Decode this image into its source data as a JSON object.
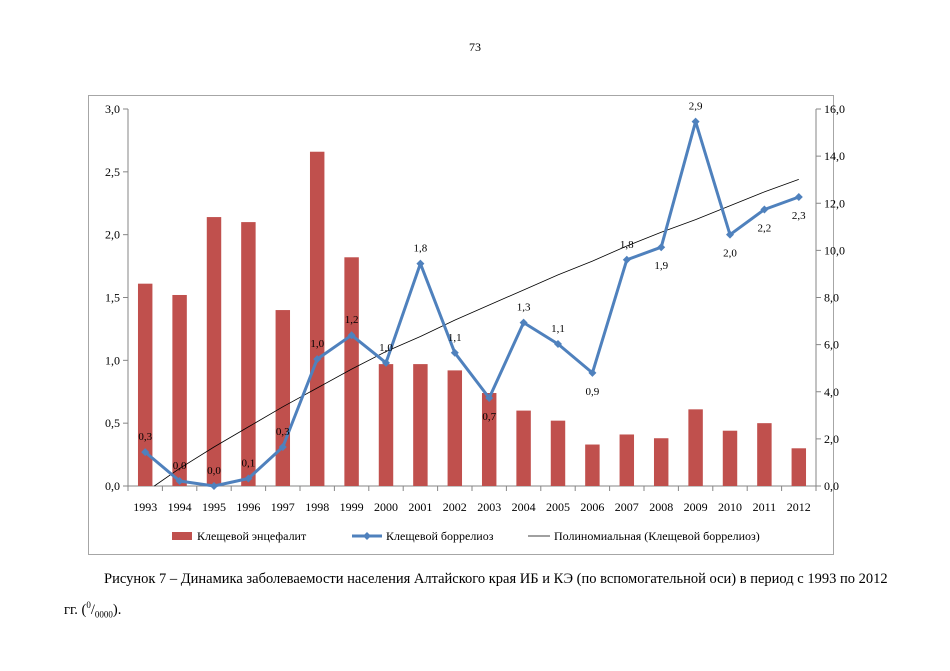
{
  "page_number": "73",
  "caption": {
    "text": "Рисунок 7 – Динамика заболеваемости населения Алтайского края ИБ и КЭ (по вспомогательной оси) в период с 1993 по 2012 гг. (",
    "unit_sup": "0",
    "unit_sep": "/",
    "unit_sub": "0000",
    "tail": ")."
  },
  "chart_data": {
    "type": "bar",
    "categories": [
      "1993",
      "1994",
      "1995",
      "1996",
      "1997",
      "1998",
      "1999",
      "2000",
      "2001",
      "2002",
      "2003",
      "2004",
      "2005",
      "2006",
      "2007",
      "2008",
      "2009",
      "2010",
      "2011",
      "2012"
    ],
    "y_left": {
      "min": 0,
      "max": 3.0,
      "ticks": [
        "0,0",
        "0,5",
        "1,0",
        "1,5",
        "2,0",
        "2,5",
        "3,0"
      ]
    },
    "y_right": {
      "min": 0,
      "max": 16.0,
      "ticks": [
        "0,0",
        "2,0",
        "4,0",
        "6,0",
        "8,0",
        "10,0",
        "12,0",
        "14,0",
        "16,0"
      ]
    },
    "grid": false,
    "legend_position": "bottom",
    "series": [
      {
        "name": "Клещевой энцефалит",
        "type": "bar",
        "axis": "left",
        "color": "#c0504d",
        "values": [
          1.61,
          1.52,
          2.14,
          2.1,
          1.4,
          2.66,
          1.82,
          0.97,
          0.97,
          0.92,
          0.74,
          0.6,
          0.52,
          0.33,
          0.41,
          0.38,
          0.61,
          0.44,
          0.5,
          0.3
        ]
      },
      {
        "name": "Клещевой боррелиоз",
        "type": "line",
        "axis": "left",
        "color": "#4f81bd",
        "values": [
          0.27,
          0.04,
          0.0,
          0.06,
          0.31,
          1.01,
          1.2,
          0.98,
          1.77,
          1.06,
          0.7,
          1.3,
          1.13,
          0.9,
          1.8,
          1.9,
          2.9,
          2.0,
          2.2,
          2.3
        ],
        "labels": [
          "0,3",
          "0,0",
          "0,0",
          "0,1",
          "0,3",
          "1,0",
          "1,2",
          "1,0",
          "1,8",
          "1,1",
          "0,7",
          "1,3",
          "1,1",
          "0,9",
          "1,8",
          "1,9",
          "2,9",
          "2,0",
          "2,2",
          "2,3"
        ],
        "label_pos": [
          "above",
          "above",
          "above",
          "above",
          "above",
          "above",
          "above",
          "above",
          "above",
          "above",
          "below",
          "above",
          "above",
          "below",
          "above",
          "below",
          "above",
          "below",
          "below",
          "below"
        ]
      },
      {
        "name": "Полиномиальная (Клещевой боррелиоз)",
        "type": "trendline",
        "axis": "left",
        "color": "#000000",
        "values": [
          -0.05,
          0.14,
          0.31,
          0.47,
          0.63,
          0.78,
          0.93,
          1.07,
          1.19,
          1.32,
          1.44,
          1.56,
          1.68,
          1.79,
          1.91,
          2.02,
          2.12,
          2.23,
          2.34,
          2.44
        ]
      }
    ]
  }
}
